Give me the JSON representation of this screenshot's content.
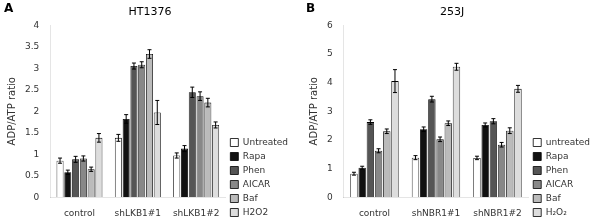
{
  "chart_data": [
    {
      "type": "bar",
      "title": "HT1376",
      "annotations": [
        "A"
      ],
      "ylabel": "ADP/ATP ratio",
      "categories": [
        "control",
        "shLKB1#1",
        "shLKB1#2"
      ],
      "series": [
        {
          "name": "Untreated",
          "color": "#ffffff",
          "values": [
            0.85,
            1.38,
            0.97
          ],
          "errors": [
            0.06,
            0.08,
            0.06
          ]
        },
        {
          "name": "Rapa",
          "color": "#111111",
          "values": [
            0.58,
            1.82,
            1.13
          ],
          "errors": [
            0.05,
            0.1,
            0.07
          ]
        },
        {
          "name": "Phen",
          "color": "#555555",
          "values": [
            0.88,
            3.05,
            2.44
          ],
          "errors": [
            0.07,
            0.07,
            0.12
          ]
        },
        {
          "name": "AICAR",
          "color": "#888888",
          "values": [
            0.9,
            3.08,
            2.35
          ],
          "errors": [
            0.06,
            0.07,
            0.1
          ]
        },
        {
          "name": "Baf",
          "color": "#bbbbbb",
          "values": [
            0.65,
            3.33,
            2.2
          ],
          "errors": [
            0.05,
            0.1,
            0.1
          ]
        },
        {
          "name": "H2O2",
          "color": "#dddddd",
          "values": [
            1.38,
            1.97,
            1.68
          ],
          "errors": [
            0.1,
            0.28,
            0.07
          ]
        }
      ],
      "ylim": [
        0,
        4
      ],
      "yticks": [
        0,
        0.5,
        1,
        1.5,
        2,
        2.5,
        3,
        3.5,
        4
      ],
      "grid": false,
      "legend": "lower right"
    },
    {
      "type": "bar",
      "title": "253J",
      "annotations": [
        "B"
      ],
      "ylabel": "ADP/ATP ratio",
      "categories": [
        "control",
        "shNBR1#1",
        "shNBR1#2"
      ],
      "series": [
        {
          "name": "untreated",
          "color": "#ffffff",
          "values": [
            0.82,
            1.38,
            1.37
          ],
          "errors": [
            0.05,
            0.07,
            0.06
          ]
        },
        {
          "name": "Rapa",
          "color": "#111111",
          "values": [
            1.03,
            2.37,
            2.52
          ],
          "errors": [
            0.05,
            0.08,
            0.07
          ]
        },
        {
          "name": "Phen",
          "color": "#555555",
          "values": [
            2.62,
            3.42,
            2.65
          ],
          "errors": [
            0.08,
            0.1,
            0.09
          ]
        },
        {
          "name": "AICAR",
          "color": "#888888",
          "values": [
            1.62,
            2.02,
            1.83
          ],
          "errors": [
            0.07,
            0.08,
            0.08
          ]
        },
        {
          "name": "Baf",
          "color": "#bbbbbb",
          "values": [
            2.3,
            2.58,
            2.32
          ],
          "errors": [
            0.08,
            0.08,
            0.1
          ]
        },
        {
          "name": "H₂O₂",
          "color": "#dddddd",
          "values": [
            4.05,
            4.55,
            3.78
          ],
          "errors": [
            0.4,
            0.12,
            0.12
          ]
        }
      ],
      "ylim": [
        0,
        6
      ],
      "yticks": [
        0,
        1,
        2,
        3,
        4,
        5,
        6
      ],
      "grid": false,
      "legend": "lower right"
    }
  ]
}
